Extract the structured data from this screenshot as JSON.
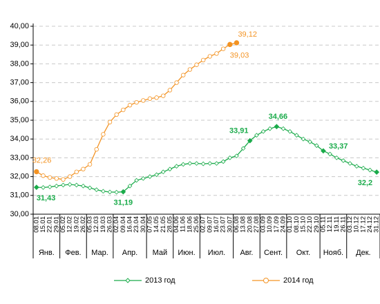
{
  "chart_data": {
    "type": "line",
    "categories": [
      "08.01",
      "15.01",
      "22.01",
      "29.01",
      "05.02",
      "12.02",
      "19.02",
      "26.02",
      "05.03",
      "12.03",
      "19.03",
      "26.03",
      "02.04",
      "09.04",
      "16.04",
      "23.04",
      "30.04",
      "07.05",
      "14.05",
      "21.05",
      "28.05",
      "04.06",
      "11.06",
      "18.06",
      "25.06",
      "02.07",
      "09.07",
      "16.07",
      "23.07",
      "30.07",
      "06.08",
      "13.08",
      "20.08",
      "27.08",
      "03.09",
      "10.09",
      "17.09",
      "24.09",
      "01.10",
      "08.10",
      "15.10",
      "22.10",
      "29.10",
      "05.11",
      "12.11",
      "19.11",
      "26.11",
      "03.12",
      "10.12",
      "17.12",
      "24.12",
      "31.12"
    ],
    "month_groups": [
      {
        "name": "Янв.",
        "span": 4
      },
      {
        "name": "Фев.",
        "span": 4
      },
      {
        "name": "Мар.",
        "span": 4
      },
      {
        "name": "Апр.",
        "span": 5
      },
      {
        "name": "Май",
        "span": 4
      },
      {
        "name": "Июн.",
        "span": 4
      },
      {
        "name": "Июл.",
        "span": 5
      },
      {
        "name": "Авг.",
        "span": 4
      },
      {
        "name": "Сент.",
        "span": 4
      },
      {
        "name": "Окт.",
        "span": 5
      },
      {
        "name": "Нояб.",
        "span": 4
      },
      {
        "name": "Дек.",
        "span": 5
      }
    ],
    "series": [
      {
        "name": "2013 год",
        "color": "#1aab4a",
        "marker": "diamond",
        "values": [
          31.43,
          31.42,
          31.45,
          31.5,
          31.55,
          31.58,
          31.55,
          31.5,
          31.4,
          31.3,
          31.22,
          31.18,
          31.17,
          31.19,
          31.5,
          31.8,
          31.9,
          32.0,
          32.1,
          32.25,
          32.4,
          32.55,
          32.65,
          32.7,
          32.7,
          32.68,
          32.7,
          32.7,
          32.8,
          33.0,
          33.1,
          33.5,
          33.91,
          34.2,
          34.4,
          34.55,
          34.66,
          34.55,
          34.4,
          34.2,
          34.0,
          33.85,
          33.65,
          33.37,
          33.2,
          33.0,
          32.85,
          32.7,
          32.55,
          32.45,
          32.35,
          32.24
        ],
        "value_labels": [
          "31,43",
          null,
          null,
          null,
          null,
          null,
          null,
          null,
          null,
          null,
          null,
          null,
          null,
          "31,19",
          null,
          null,
          null,
          null,
          null,
          null,
          null,
          null,
          null,
          null,
          null,
          null,
          null,
          null,
          null,
          null,
          null,
          null,
          "33,91",
          null,
          null,
          null,
          "34,66",
          null,
          null,
          null,
          null,
          null,
          null,
          "33,37",
          null,
          null,
          null,
          null,
          null,
          null,
          null,
          "32,2"
        ]
      },
      {
        "name": "2014 год",
        "color": "#f39323",
        "marker": "circle",
        "values": [
          32.26,
          32.05,
          31.95,
          31.9,
          31.85,
          32.0,
          32.25,
          32.4,
          32.65,
          33.45,
          34.25,
          34.9,
          35.3,
          35.55,
          35.8,
          35.95,
          36.05,
          36.15,
          36.2,
          36.3,
          36.6,
          37.0,
          37.4,
          37.7,
          37.95,
          38.2,
          38.4,
          38.55,
          38.8,
          39.03,
          39.12,
          null,
          null,
          null,
          null,
          null,
          null,
          null,
          null,
          null,
          null,
          null,
          null,
          null,
          null,
          null,
          null,
          null,
          null,
          null,
          null,
          null
        ],
        "value_labels": [
          "32,26",
          null,
          null,
          null,
          null,
          null,
          null,
          null,
          null,
          null,
          null,
          null,
          null,
          null,
          null,
          null,
          null,
          null,
          null,
          null,
          null,
          null,
          null,
          null,
          null,
          null,
          null,
          null,
          null,
          "39,03",
          "39,12",
          null,
          null,
          null,
          null,
          null,
          null,
          null,
          null,
          null,
          null,
          null,
          null,
          null,
          null,
          null,
          null,
          null,
          null,
          null,
          null,
          null
        ]
      }
    ],
    "ylim": [
      30,
      40
    ],
    "yticks": [
      {
        "value": 30,
        "label": "30,00"
      },
      {
        "value": 31,
        "label": "31,00"
      },
      {
        "value": 32,
        "label": "32,00"
      },
      {
        "value": 33,
        "label": "33,00"
      },
      {
        "value": 34,
        "label": "34,00"
      },
      {
        "value": 35,
        "label": "35,00"
      },
      {
        "value": 36,
        "label": "36,00"
      },
      {
        "value": 37,
        "label": "37,00"
      },
      {
        "value": 38,
        "label": "38,00"
      },
      {
        "value": 39,
        "label": "39,00"
      },
      {
        "value": 40,
        "label": "40,00"
      }
    ],
    "grid": true,
    "legend": "bottom"
  }
}
